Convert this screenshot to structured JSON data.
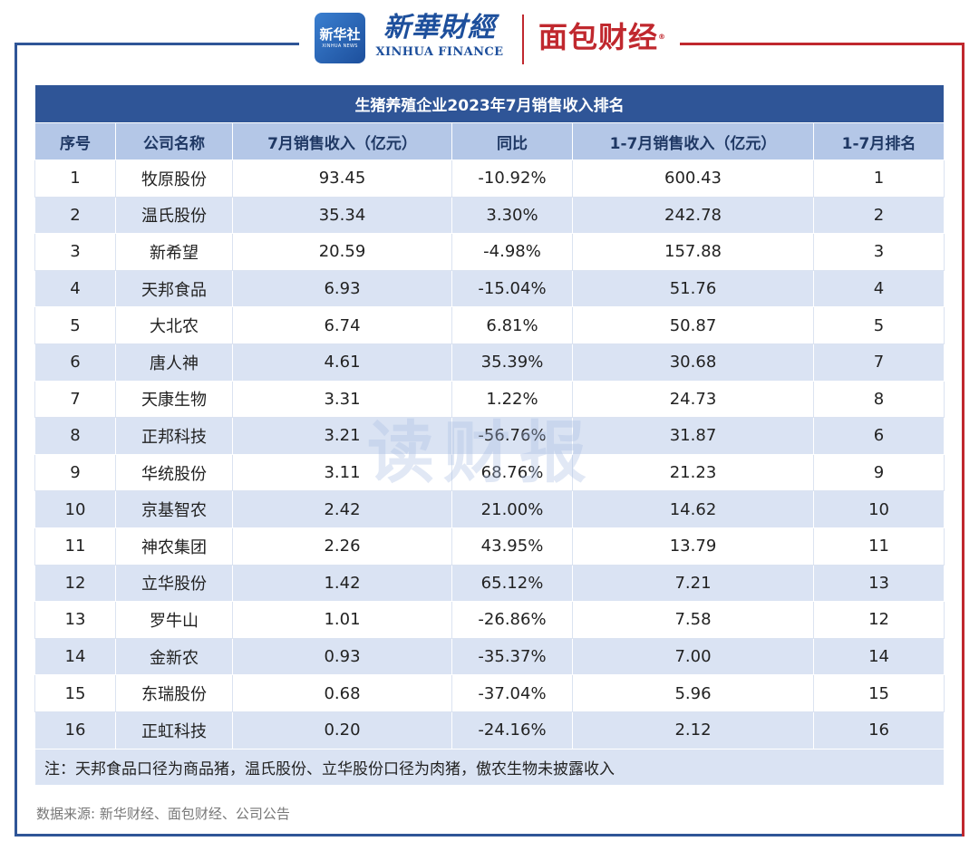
{
  "header": {
    "xinhua_badge": "新华社",
    "xinhua_badge_en": "XINHUA NEWS",
    "xinhua_cn": "新華財經",
    "xinhua_en": "XINHUA FINANCE",
    "mianbao": "面包财经",
    "mianbao_mark": "®"
  },
  "table": {
    "title": "生猪养殖企业2023年7月销售收入排名",
    "columns": [
      "序号",
      "公司名称",
      "7月销售收入（亿元）",
      "同比",
      "1-7月销售收入（亿元）",
      "1-7月排名"
    ],
    "rows": [
      [
        "1",
        "牧原股份",
        "93.45",
        "-10.92%",
        "600.43",
        "1"
      ],
      [
        "2",
        "温氏股份",
        "35.34",
        "3.30%",
        "242.78",
        "2"
      ],
      [
        "3",
        "新希望",
        "20.59",
        "-4.98%",
        "157.88",
        "3"
      ],
      [
        "4",
        "天邦食品",
        "6.93",
        "-15.04%",
        "51.76",
        "4"
      ],
      [
        "5",
        "大北农",
        "6.74",
        "6.81%",
        "50.87",
        "5"
      ],
      [
        "6",
        "唐人神",
        "4.61",
        "35.39%",
        "30.68",
        "7"
      ],
      [
        "7",
        "天康生物",
        "3.31",
        "1.22%",
        "24.73",
        "8"
      ],
      [
        "8",
        "正邦科技",
        "3.21",
        "-56.76%",
        "31.87",
        "6"
      ],
      [
        "9",
        "华统股份",
        "3.11",
        "68.76%",
        "21.23",
        "9"
      ],
      [
        "10",
        "京基智农",
        "2.42",
        "21.00%",
        "14.62",
        "10"
      ],
      [
        "11",
        "神农集团",
        "2.26",
        "43.95%",
        "13.79",
        "11"
      ],
      [
        "12",
        "立华股份",
        "1.42",
        "65.12%",
        "7.21",
        "13"
      ],
      [
        "13",
        "罗牛山",
        "1.01",
        "-26.86%",
        "7.58",
        "12"
      ],
      [
        "14",
        "金新农",
        "0.93",
        "-35.37%",
        "7.00",
        "14"
      ],
      [
        "15",
        "东瑞股份",
        "0.68",
        "-37.04%",
        "5.96",
        "15"
      ],
      [
        "16",
        "正虹科技",
        "0.20",
        "-24.16%",
        "2.12",
        "16"
      ]
    ],
    "note": "注：天邦食品口径为商品猪，温氏股份、立华股份口径为肉猪，傲农生物未披露收入"
  },
  "source": "数据来源: 新华财经、面包财经、公司公告",
  "watermark": "读财报"
}
